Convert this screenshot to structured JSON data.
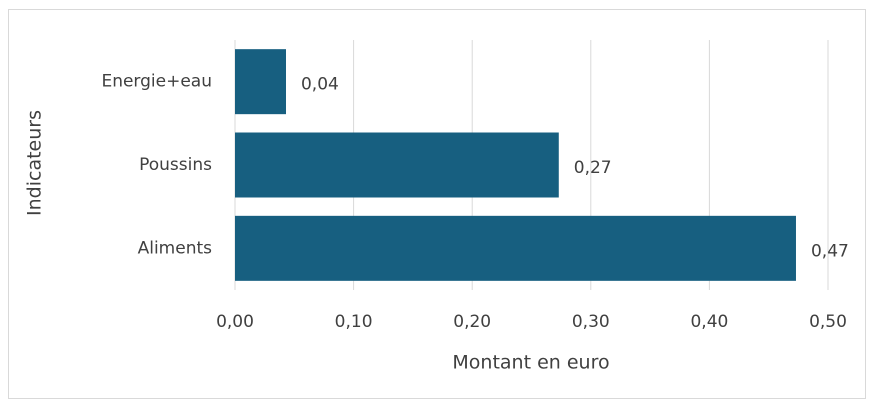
{
  "chart_data": {
    "type": "hbar",
    "categories": [
      "Aliments",
      "Poussins",
      "Energie+eau"
    ],
    "values": [
      0.473,
      0.273,
      0.043
    ],
    "value_labels": [
      "0,47",
      "0,27",
      "0,04"
    ],
    "color": "#175f80",
    "xlabel": "Montant en euro",
    "ylabel": "Indicateurs",
    "xlim": [
      0,
      0.5
    ],
    "xticks": [
      {
        "value": 0,
        "label": "0,00"
      },
      {
        "value": 0.1,
        "label": "0,10"
      },
      {
        "value": 0.2,
        "label": "0,20"
      },
      {
        "value": 0.3,
        "label": "0,30"
      },
      {
        "value": 0.4,
        "label": "0,40"
      },
      {
        "value": 0.5,
        "label": "0,50"
      }
    ],
    "grid": true
  }
}
